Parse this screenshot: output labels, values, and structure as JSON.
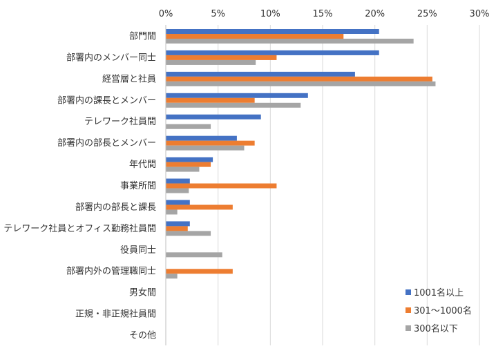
{
  "chart_data": {
    "type": "bar",
    "orientation": "horizontal",
    "xlim": [
      0,
      30
    ],
    "x_ticks": [
      "0%",
      "5%",
      "10%",
      "15%",
      "20%",
      "25%",
      "30%"
    ],
    "grid": true,
    "legend_position": "bottom-right",
    "categories": [
      "部門間",
      "部署内のメンバー同士",
      "経営層と社員",
      "部署内の課長とメンバー",
      "テレワーク社員間",
      "部署内の部長とメンバー",
      "年代間",
      "事業所間",
      "部署内の部長と課長",
      "テレワーク社員とオフィス勤務社員間",
      "役員同士",
      "部署内外の管理職同士",
      "男女間",
      "正規・非正規社員間",
      "その他"
    ],
    "series": [
      {
        "name": "1001名以上",
        "color": "#4472C4",
        "values": [
          20.4,
          20.4,
          18.1,
          13.6,
          9.1,
          6.8,
          4.5,
          2.3,
          2.3,
          2.3,
          0,
          0,
          0,
          0,
          0
        ]
      },
      {
        "name": "301～1000名",
        "color": "#ED7D31",
        "values": [
          17.0,
          10.6,
          25.5,
          8.5,
          0,
          8.5,
          4.3,
          10.6,
          6.4,
          2.1,
          0,
          6.4,
          0,
          0,
          0
        ]
      },
      {
        "name": "300名以下",
        "color": "#A5A5A5",
        "values": [
          23.7,
          8.6,
          25.8,
          12.9,
          4.3,
          7.5,
          3.2,
          2.2,
          1.1,
          4.3,
          5.4,
          1.1,
          0,
          0,
          0
        ]
      }
    ]
  }
}
